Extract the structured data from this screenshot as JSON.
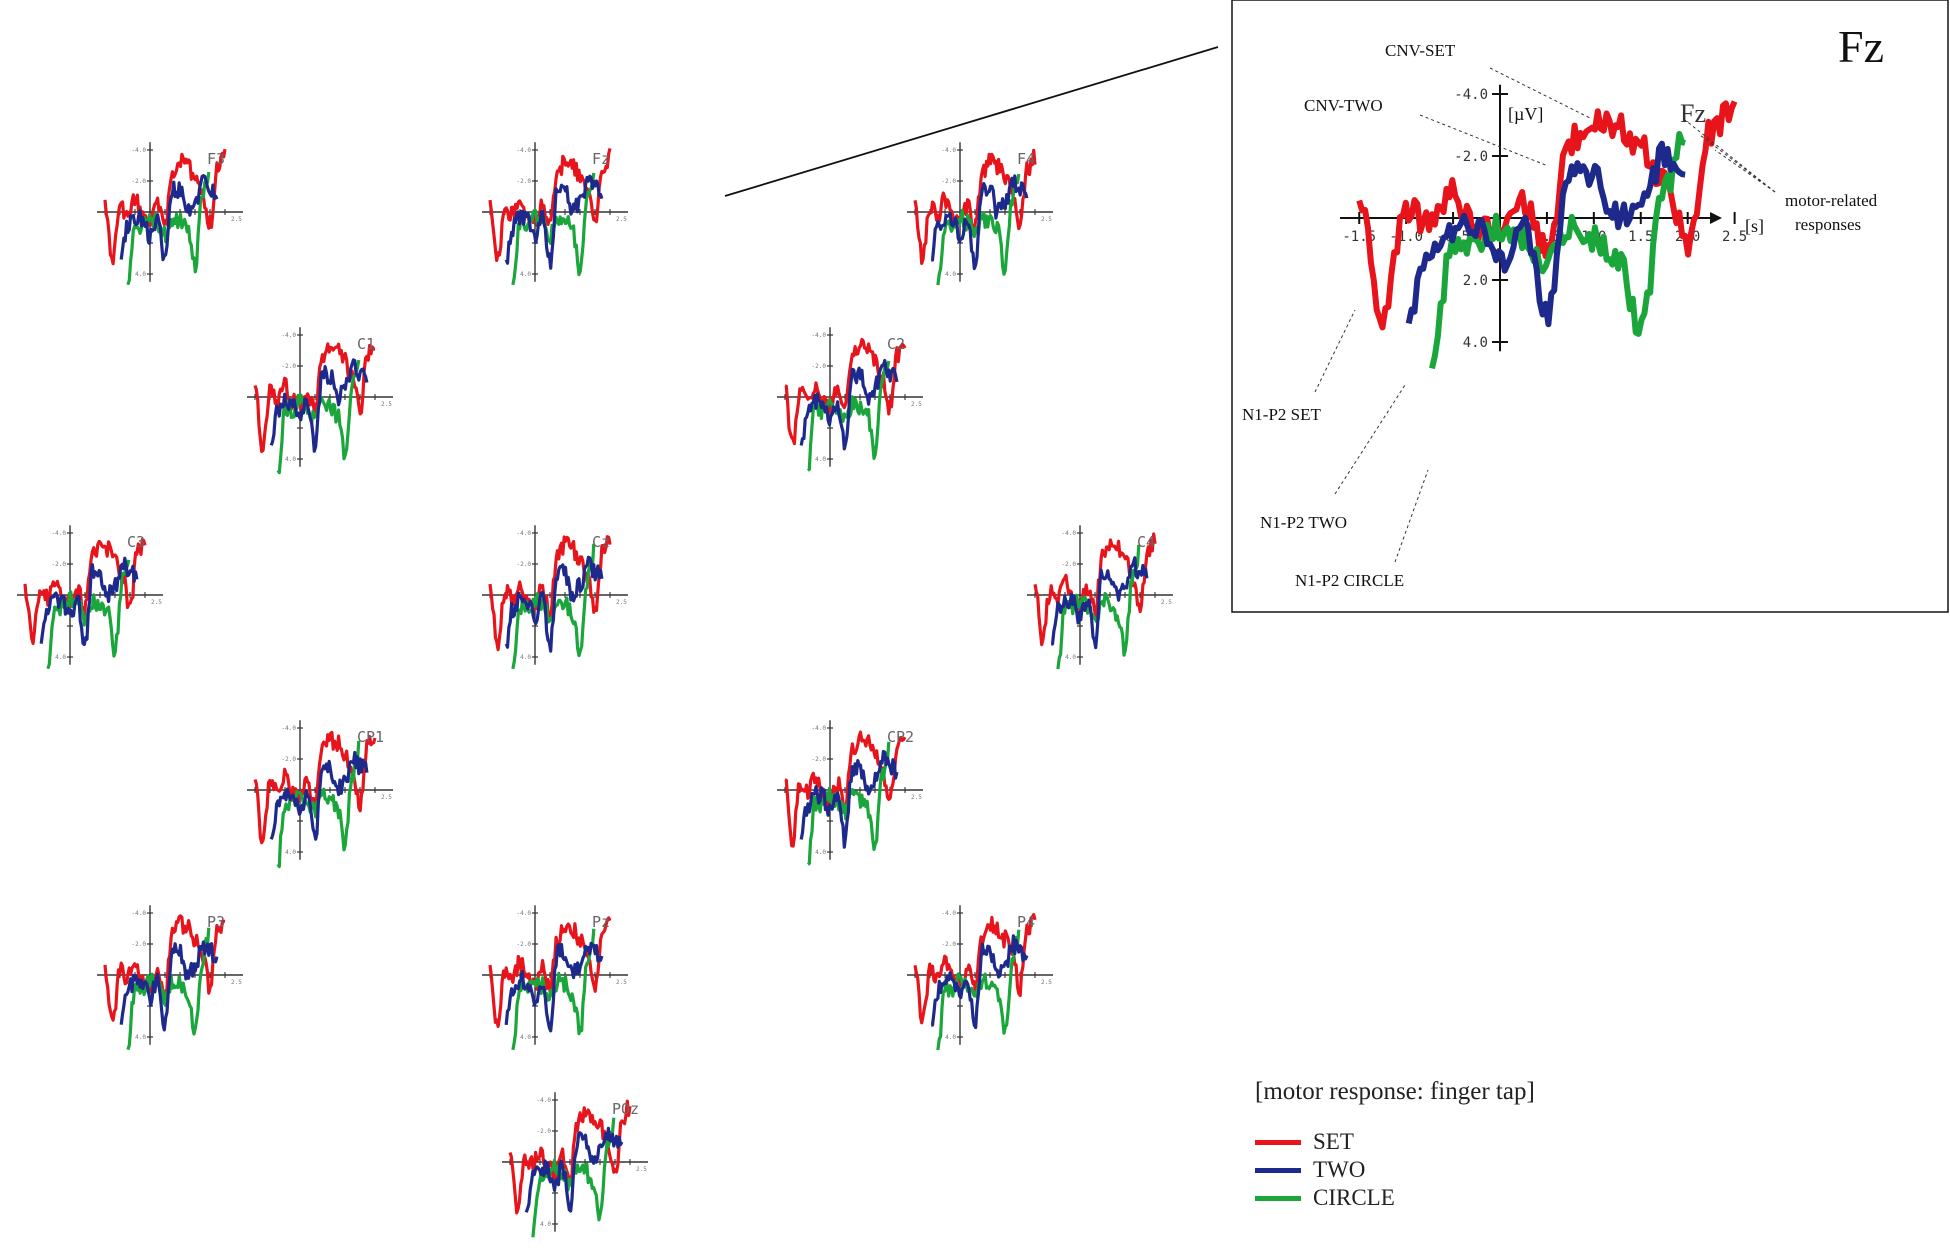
{
  "colors": {
    "SET": "#e8141b",
    "TWO": "#1d2a8c",
    "CIRCLE": "#1aa63a"
  },
  "legend": {
    "title": "[motor response: finger tap]",
    "items": [
      {
        "label": "SET",
        "color": "#e8141b"
      },
      {
        "label": "TWO",
        "color": "#1d2a8c"
      },
      {
        "label": "CIRCLE",
        "color": "#1aa63a"
      }
    ]
  },
  "chart_data": {
    "type": "line",
    "grid": false,
    "y_inverted": true,
    "x_unit": "[s]",
    "y_unit": "[µV]",
    "xlim": [
      -1.5,
      2.5
    ],
    "ylim": [
      -4.0,
      4.0
    ],
    "x_ticks": [
      "-1.5",
      "-1.0",
      "-0.5",
      "0.5",
      "1.0",
      "1.5",
      "2.0",
      "2.5"
    ],
    "y_ticks": [
      "-4.0",
      "-2.0",
      "2.0",
      "4.0"
    ],
    "small_x_tick_label": "2.5",
    "series_names": [
      "SET",
      "TWO",
      "CIRCLE"
    ],
    "electrodes": [
      "F3",
      "Fz",
      "F4",
      "C1",
      "C2",
      "C3",
      "Cz",
      "C4",
      "CP1",
      "CP2",
      "P3",
      "Pz",
      "P4",
      "POz"
    ],
    "inset": {
      "electrode": "Fz",
      "inner_label": "Fz",
      "annotations": [
        "CNV-SET",
        "CNV-TWO",
        "motor-related responses",
        "N1-P2 SET",
        "N1-P2 TWO",
        "N1-P2 CIRCLE"
      ],
      "x": [
        -1.5,
        -1.25,
        -1.0,
        -0.75,
        -0.5,
        -0.25,
        0.0,
        0.25,
        0.5,
        0.75,
        1.0,
        1.25,
        1.5,
        1.75,
        2.0,
        2.25,
        2.5
      ],
      "series": [
        {
          "name": "SET",
          "values": [
            -0.5,
            3.2,
            -0.3,
            0.2,
            -0.8,
            0.3,
            0.6,
            -0.4,
            1.0,
            -2.5,
            -3.3,
            -3.0,
            -2.3,
            -1.2,
            0.8,
            -2.8,
            -3.6
          ]
        },
        {
          "name": "TWO",
          "values": [
            null,
            null,
            3.5,
            1.0,
            0.3,
            0.4,
            1.5,
            0.3,
            3.2,
            -1.5,
            -1.4,
            0.0,
            -0.6,
            -2.0,
            -1.5,
            null,
            null
          ]
        },
        {
          "name": "CIRCLE",
          "values": [
            null,
            null,
            null,
            5.0,
            0.8,
            0.9,
            0.3,
            0.7,
            1.5,
            0.4,
            0.6,
            1.2,
            3.6,
            -1.0,
            -2.9,
            null,
            null
          ]
        }
      ]
    }
  }
}
